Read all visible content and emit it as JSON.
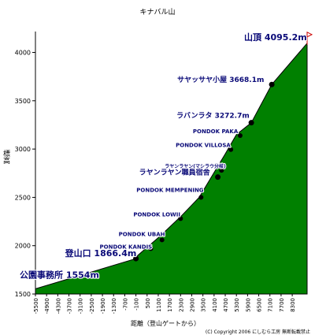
{
  "colors": {
    "area_fill": "#008000",
    "line": "#000000",
    "label_text": "#0a0a78",
    "label_halo": "#ffffff",
    "flag": "#cc0000"
  },
  "chart_data": {
    "type": "area",
    "title": "キナバル山",
    "xlabel": "距離（登山ゲートから）",
    "ylabel": "標高",
    "xlim": [
      -5500,
      9100
    ],
    "ylim": [
      1500,
      4200
    ],
    "x_ticks": [
      "-5500",
      "-4900",
      "-4300",
      "-3700",
      "-3100",
      "-2500",
      "-1900",
      "-1300",
      "-700",
      "-100",
      "500",
      "1100",
      "1700",
      "2300",
      "2900",
      "3500",
      "4100",
      "4700",
      "5300",
      "5900",
      "6500",
      "7100",
      "7700",
      "8300"
    ],
    "y_ticks": [
      "1500",
      "2000",
      "2500",
      "3000",
      "3500",
      "4000"
    ],
    "grid": false,
    "series": [
      {
        "x": [
          -5500,
          -100,
          0,
          1200,
          2300,
          3300,
          4700,
          5300,
          6100,
          7200,
          9100
        ],
        "y": [
          1554,
          1866.4,
          1900,
          2100,
          2300,
          2500,
          2950,
          3150,
          3272.7,
          3668.1,
          4095.2
        ]
      }
    ],
    "annotations": [
      {
        "label": "公園事務所 1554m",
        "x": -5500,
        "y": 1554,
        "marker": false,
        "size": "large"
      },
      {
        "label": "登山口 1866.4m",
        "x": -100,
        "y": 1866.4,
        "marker": true,
        "size": "large"
      },
      {
        "label": "PONDOK KANDIS",
        "x": 700,
        "y": 1970,
        "marker": true,
        "size": "small"
      },
      {
        "label": "PONDOK UBAH",
        "x": 1300,
        "y": 2060,
        "marker": true,
        "size": "small"
      },
      {
        "label": "PONDOK LOWII",
        "x": 2300,
        "y": 2280,
        "marker": true,
        "size": "small"
      },
      {
        "label": "PONDOK MEMPENING",
        "x": 3400,
        "y": 2500,
        "marker": true,
        "size": "small"
      },
      {
        "label": "ラヤンラヤン職員宿舎",
        "x": 4300,
        "y": 2710,
        "marker": true,
        "size": "medium"
      },
      {
        "label": "ラヤンラヤン(マシラウ分岐)",
        "x": 4500,
        "y": 2780,
        "marker": true,
        "size": "tiny"
      },
      {
        "label": "PONDOK VILLOSA",
        "x": 5000,
        "y": 2995,
        "marker": true,
        "size": "small"
      },
      {
        "label": "PONDOK PAKA",
        "x": 5500,
        "y": 3140,
        "marker": true,
        "size": "small"
      },
      {
        "label": "ラバンラタ 3272.7m",
        "x": 6100,
        "y": 3272.7,
        "marker": true,
        "size": "medium"
      },
      {
        "label": "サヤッサヤ小屋 3668.1m",
        "x": 7200,
        "y": 3668.1,
        "marker": true,
        "size": "medium"
      },
      {
        "label": "山頂 4095.2m",
        "x": 9100,
        "y": 4095.2,
        "marker": false,
        "size": "large"
      }
    ]
  },
  "footer": {
    "copyright": "(C) Copyright 2006 にしむら工房 無断転載禁止"
  }
}
